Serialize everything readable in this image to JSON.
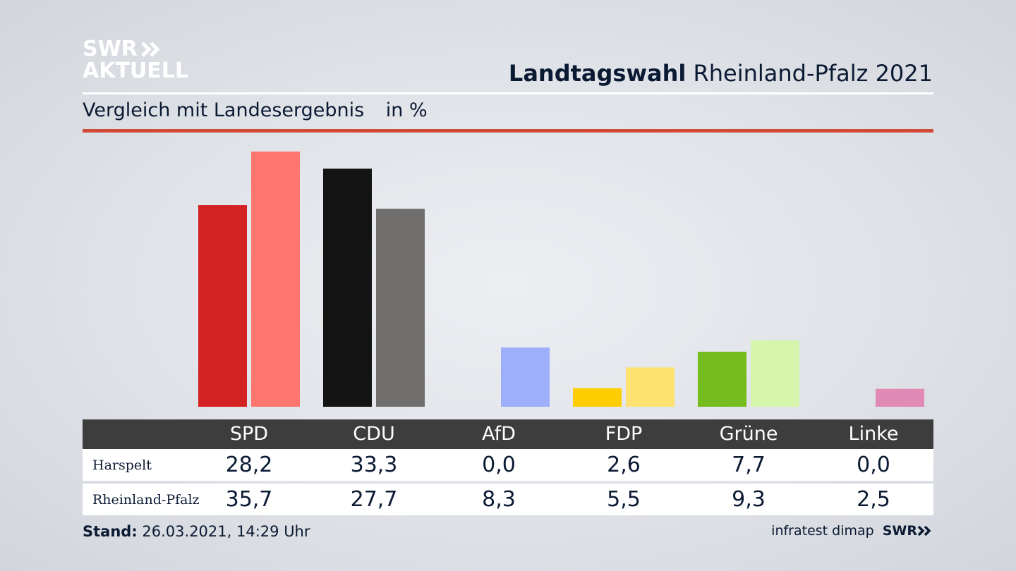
{
  "logo": {
    "line1": "SWR",
    "line2": "AKTUELL"
  },
  "header": {
    "title_bold": "Landtagswahl",
    "title_rest": "Rheinland-Pfalz 2021"
  },
  "subtitle": {
    "text": "Vergleich mit Landesergebnis",
    "unit": "in %"
  },
  "footer": {
    "stand_label": "Stand:",
    "stand_value": "26.03.2021, 14:29 Uhr"
  },
  "source": {
    "institute": "infratest dimap",
    "brand": "SWR"
  },
  "colors": {
    "accent_line": "#d04a38",
    "table_header": "#3d3d3d",
    "SPD": [
      "#d42121",
      "#ff7570"
    ],
    "CDU": [
      "#131313",
      "#716f6d"
    ],
    "AfD": [
      "#0aa0e0",
      "#9caefc"
    ],
    "FDP": [
      "#ffcc00",
      "#fde271"
    ],
    "Grüne": [
      "#75bd1f",
      "#d5f5ad"
    ],
    "Linke": [
      "#bd3075",
      "#e08ab5"
    ]
  },
  "chart_data": {
    "type": "bar",
    "categories": [
      "SPD",
      "CDU",
      "AfD",
      "FDP",
      "Grüne",
      "Linke"
    ],
    "series": [
      {
        "name": "Harspelt",
        "values": [
          28.2,
          33.3,
          0.0,
          2.6,
          7.7,
          0.0
        ],
        "labels": [
          "28,2",
          "33,3",
          "0,0",
          "2,6",
          "7,7",
          "0,0"
        ]
      },
      {
        "name": "Rheinland-Pfalz",
        "values": [
          35.7,
          27.7,
          8.3,
          5.5,
          9.3,
          2.5
        ],
        "labels": [
          "35,7",
          "27,7",
          "8,3",
          "5,5",
          "9,3",
          "2,5"
        ]
      }
    ],
    "title": "Landtagswahl Rheinland-Pfalz 2021",
    "subtitle": "Vergleich mit Landesergebnis",
    "ylabel": "in %",
    "ylim": [
      0,
      35.7
    ],
    "grid": false,
    "legend": "table-below"
  }
}
